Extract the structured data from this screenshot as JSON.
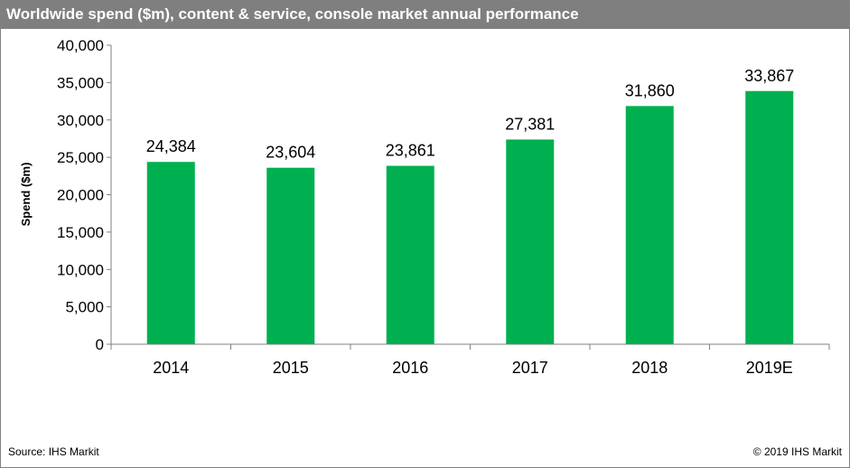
{
  "title": "Worldwide spend ($m), content & service, console market annual performance",
  "source": "Source: IHS Markit",
  "copyright": "© 2019 IHS Markit",
  "colors": {
    "bar": "#00b050",
    "title_bg": "#7f7f7f",
    "axis": "#808080"
  },
  "chart_data": {
    "type": "bar",
    "title": "Worldwide spend ($m), content & service, console market annual performance",
    "xlabel": "",
    "ylabel": "Spend ($m)",
    "categories": [
      "2014",
      "2015",
      "2016",
      "2017",
      "2018",
      "2019E"
    ],
    "values": [
      24384,
      23604,
      23861,
      27381,
      31860,
      33867
    ],
    "value_labels": [
      "24,384",
      "23,604",
      "23,861",
      "27,381",
      "31,860",
      "33,867"
    ],
    "ylim": [
      0,
      40000
    ],
    "yticks": [
      0,
      5000,
      10000,
      15000,
      20000,
      25000,
      30000,
      35000,
      40000
    ],
    "ytick_labels": [
      "0",
      "5,000",
      "10,000",
      "15,000",
      "20,000",
      "25,000",
      "30,000",
      "35,000",
      "40,000"
    ],
    "grid": false,
    "legend": "none"
  }
}
